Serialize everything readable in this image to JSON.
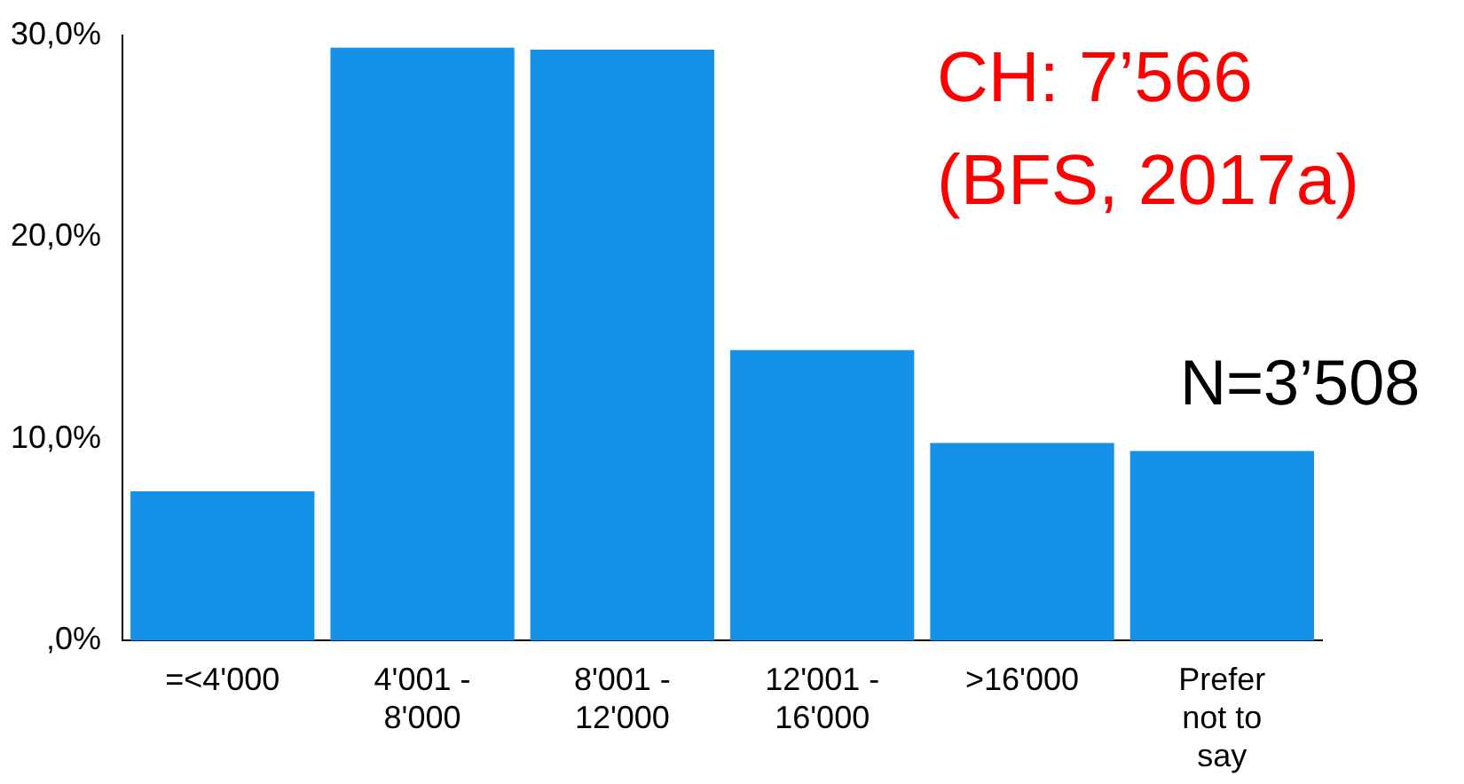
{
  "chart_data": {
    "type": "bar",
    "categories": [
      "=<4'000",
      "4'001 - 8'000",
      "8'001 - 12'000",
      "12'001 - 16'000",
      ">16'000",
      "Prefer not to say"
    ],
    "values": [
      7.4,
      29.4,
      29.3,
      14.4,
      9.8,
      9.4
    ],
    "color": "#1591e8",
    "ylim": [
      0,
      30
    ],
    "yticks": [
      {
        "value": 0,
        "label": ",0%"
      },
      {
        "value": 10,
        "label": "10,0%"
      },
      {
        "value": 20,
        "label": "20,0%"
      },
      {
        "value": 30,
        "label": "30,0%"
      }
    ],
    "grid": false,
    "legend": false,
    "annotations": [
      "CH: 7’566",
      "(BFS, 2017a)",
      "N=3’508"
    ]
  }
}
